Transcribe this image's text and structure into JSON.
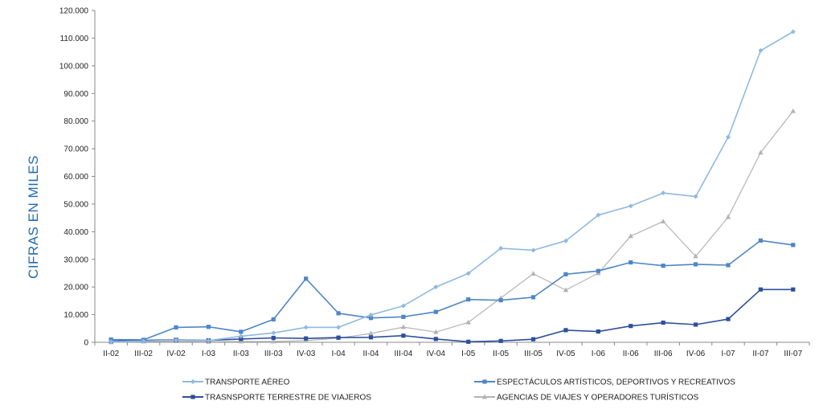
{
  "chart_data": {
    "type": "line",
    "title": "",
    "xlabel": "",
    "ylabel": "CIFRAS EN MILES",
    "ylim": [
      0,
      120000
    ],
    "yticks": [
      0,
      10000,
      20000,
      30000,
      40000,
      50000,
      60000,
      70000,
      80000,
      90000,
      100000,
      110000,
      120000
    ],
    "ytick_labels": [
      "0",
      "10.000",
      "20.000",
      "30.000",
      "40.000",
      "50.000",
      "60.000",
      "70.000",
      "80.000",
      "90.000",
      "100.000",
      "110.000",
      "120.000"
    ],
    "categories": [
      "II-02",
      "III-02",
      "IV-02",
      "I-03",
      "II-03",
      "III-03",
      "IV-03",
      "I-04",
      "II-04",
      "III-04",
      "IV-04",
      "I-05",
      "II-05",
      "III-05",
      "IV-05",
      "I-06",
      "II-06",
      "III-06",
      "IV-06",
      "I-07",
      "II-07",
      "III-07"
    ],
    "grid": false,
    "legend_position": "bottom",
    "series": [
      {
        "name": "TRANSPORTE AÉREO",
        "color": "#8fb9e2",
        "marker": "diamond",
        "values": [
          200,
          400,
          800,
          600,
          2200,
          3400,
          5400,
          5400,
          9900,
          13200,
          20000,
          24900,
          34000,
          33300,
          36700,
          46000,
          49300,
          54000,
          52700,
          74200,
          105500,
          112300
        ]
      },
      {
        "name": "ESPECTÁCULOS ARTÍSTICOS, DEPORTIVOS Y RECREATIVOS",
        "color": "#4f86c6",
        "marker": "square",
        "values": [
          1000,
          900,
          5400,
          5600,
          3800,
          8300,
          23000,
          10500,
          8800,
          9200,
          11000,
          15500,
          15200,
          16300,
          24600,
          25800,
          28900,
          27700,
          28200,
          27900,
          36800,
          35200
        ]
      },
      {
        "name": "TRASNSPORTE TERRESTRE DE VIAJEROS",
        "color": "#2e4f9c",
        "marker": "square",
        "values": [
          400,
          700,
          900,
          700,
          1200,
          1600,
          1400,
          1700,
          1800,
          2400,
          1200,
          200,
          500,
          1100,
          4400,
          3900,
          5900,
          7100,
          6400,
          8400,
          19100,
          19100
        ]
      },
      {
        "name": "AGENCIAS DE VIAJES Y OPERADORES TURÍSTICOS",
        "color": "#b3b3b3",
        "marker": "triangle",
        "values": [
          0,
          300,
          400,
          200,
          300,
          300,
          600,
          1500,
          3200,
          5500,
          3700,
          7200,
          16000,
          24800,
          18900,
          25000,
          38400,
          43700,
          31100,
          45300,
          68600,
          83600
        ]
      }
    ]
  }
}
